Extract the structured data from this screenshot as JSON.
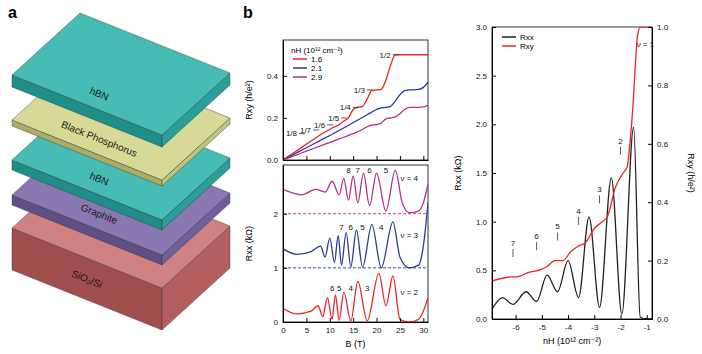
{
  "panel_a": {
    "label": "a",
    "layers": [
      "hBN",
      "Black Phosphorus",
      "hBN",
      "Graphite",
      "SiO₂/Si"
    ]
  },
  "panel_b": {
    "label": "b"
  },
  "chart_data": [
    {
      "type": "line",
      "ylabel": "Rxy (h/e²)",
      "xlim": [
        0,
        31
      ],
      "ylim": [
        0,
        0.57
      ],
      "xticks": [
        0,
        5,
        10,
        15,
        20,
        25,
        30
      ],
      "yticks": [
        {
          "value": 0,
          "label": "0.0"
        },
        {
          "value": 0.2,
          "label": "0.2"
        },
        {
          "value": 0.4,
          "label": "0.4"
        }
      ],
      "tick_labels": "y",
      "legend": "upper left",
      "legend_title": "nH (10¹² cm⁻²)",
      "series": [
        {
          "name": "1.6",
          "color": "#e8262a",
          "x": [
            0,
            2,
            4,
            6,
            8,
            10,
            11,
            12,
            13,
            14,
            15,
            16,
            17,
            18,
            19,
            20,
            21,
            22,
            23,
            24,
            25,
            26,
            28,
            30,
            31
          ],
          "values": [
            0,
            0.03,
            0.06,
            0.09,
            0.12,
            0.145,
            0.157,
            0.168,
            0.185,
            0.2,
            0.24,
            0.25,
            0.255,
            0.29,
            0.33,
            0.333,
            0.336,
            0.38,
            0.45,
            0.5,
            0.5,
            0.5,
            0.5,
            0.5,
            0.5
          ]
        },
        {
          "name": "2.1",
          "color": "#2b3a94",
          "x": [
            0,
            3,
            6,
            9,
            12,
            14,
            16,
            18,
            20,
            21,
            22,
            23,
            24,
            25,
            26,
            27,
            28,
            29,
            30,
            31
          ],
          "values": [
            0,
            0.035,
            0.07,
            0.105,
            0.14,
            0.165,
            0.19,
            0.215,
            0.24,
            0.248,
            0.25,
            0.255,
            0.28,
            0.31,
            0.33,
            0.333,
            0.333,
            0.335,
            0.345,
            0.37
          ]
        },
        {
          "name": "2.9",
          "color": "#b0308a",
          "x": [
            0,
            3,
            6,
            9,
            12,
            15,
            17,
            18,
            19,
            20,
            21,
            22,
            23,
            24,
            25,
            26,
            27,
            28,
            29,
            30,
            31
          ],
          "values": [
            0,
            0.025,
            0.05,
            0.075,
            0.1,
            0.125,
            0.145,
            0.158,
            0.166,
            0.168,
            0.175,
            0.195,
            0.2,
            0.205,
            0.22,
            0.24,
            0.25,
            0.25,
            0.25,
            0.252,
            0.26
          ]
        }
      ],
      "annotations": [
        {
          "text": "1/2",
          "x": 23,
          "y": 0.5,
          "marker": "dash"
        },
        {
          "text": "1/3",
          "x": 17.5,
          "y": 0.333,
          "marker": "dash"
        },
        {
          "text": "1/4",
          "x": 14.5,
          "y": 0.25,
          "marker": "dash"
        },
        {
          "text": "1/5",
          "x": 12,
          "y": 0.2,
          "marker": "dash"
        },
        {
          "text": "1/6",
          "x": 9,
          "y": 0.167,
          "marker": "dash"
        },
        {
          "text": "1/7",
          "x": 6,
          "y": 0.143,
          "marker": "dash"
        },
        {
          "text": "1/8",
          "x": 3,
          "y": 0.125,
          "marker": "dash"
        }
      ]
    },
    {
      "type": "line",
      "xlabel": "B (T)",
      "ylabel": "Rxx (kΩ)",
      "xlim": [
        0,
        31
      ],
      "ylim": [
        0,
        2.9
      ],
      "xticks": [
        0,
        5,
        10,
        15,
        20,
        25,
        30
      ],
      "yticks": [
        0,
        1,
        2
      ],
      "series": [
        {
          "color": "#e8262a",
          "x": [
            0,
            3,
            6,
            7.5,
            8.5,
            9.5,
            10.5,
            11.2,
            12,
            13,
            14.5,
            16,
            18,
            20.5,
            22,
            23.5,
            25,
            27,
            29,
            30,
            31
          ],
          "values": [
            0.25,
            0.15,
            0.2,
            0.3,
            0.1,
            0.45,
            0.05,
            0.5,
            0.03,
            0.55,
            0.02,
            0.75,
            0.02,
            0.9,
            0.3,
            0.85,
            0.05,
            0,
            0.05,
            0.2,
            0.45
          ]
        },
        {
          "color": "#2b3a94",
          "x": [
            0,
            3,
            6,
            8,
            9,
            10,
            11,
            11.8,
            12.5,
            13.5,
            14.5,
            15.7,
            17,
            19,
            21,
            23.5,
            25,
            27,
            29,
            30,
            31
          ],
          "values": [
            1.35,
            1.25,
            1.3,
            1.4,
            1.2,
            1.55,
            1.1,
            1.6,
            1.05,
            1.65,
            1.02,
            1.7,
            1.01,
            1.8,
            1.0,
            1.85,
            1.2,
            1.0,
            1.05,
            1.4,
            2.2
          ]
        },
        {
          "color": "#b0308a",
          "x": [
            0,
            4,
            7,
            9,
            10.5,
            12,
            13,
            14,
            15,
            16,
            17.2,
            18.5,
            20,
            22,
            24,
            25.5,
            27,
            29,
            30,
            31
          ],
          "values": [
            2.45,
            2.35,
            2.45,
            2.4,
            2.6,
            2.35,
            2.65,
            2.25,
            2.7,
            2.2,
            2.75,
            2.15,
            2.75,
            2.05,
            2.8,
            2.2,
            2.02,
            2.05,
            2.2,
            2.55
          ]
        },
        {
          "color": "#2b3a94",
          "line_style": "dashed",
          "x": [
            0,
            31
          ],
          "values": [
            1,
            1
          ]
        },
        {
          "color": "#b0308a",
          "line_style": "dashed",
          "x": [
            0,
            31
          ],
          "values": [
            2,
            2
          ]
        }
      ],
      "annotations": [
        {
          "text": "6",
          "x": 10.5,
          "y": 0.62
        },
        {
          "text": "5",
          "x": 12,
          "y": 0.62
        },
        {
          "text": "4",
          "x": 14.5,
          "y": 0.62
        },
        {
          "text": "3",
          "x": 18,
          "y": 0.62
        },
        {
          "text": "ν = 2",
          "x": 27,
          "y": 0.55
        },
        {
          "text": "7",
          "x": 12.5,
          "y": 1.75
        },
        {
          "text": "6",
          "x": 14.5,
          "y": 1.75
        },
        {
          "text": "5",
          "x": 17,
          "y": 1.75
        },
        {
          "text": "4",
          "x": 21,
          "y": 1.75
        },
        {
          "text": "ν = 3",
          "x": 27,
          "y": 1.6
        },
        {
          "text": "8",
          "x": 14,
          "y": 2.8
        },
        {
          "text": "7",
          "x": 16,
          "y": 2.8
        },
        {
          "text": "6",
          "x": 18.5,
          "y": 2.8
        },
        {
          "text": "5",
          "x": 22,
          "y": 2.8
        },
        {
          "text": "ν = 4",
          "x": 27,
          "y": 2.65
        }
      ]
    },
    {
      "type": "line",
      "xlabel": "nH (10¹² cm⁻²)",
      "ylabel": "Rxx (kΩ)",
      "y2label": "Rxy (h/e²)",
      "xlim": [
        -6.9,
        -0.8
      ],
      "ylim": [
        0,
        3
      ],
      "y2lim": [
        0,
        1
      ],
      "xticks": [
        -6,
        -5,
        -4,
        -3,
        -2,
        -1
      ],
      "yticks": [
        {
          "value": 0,
          "label": "0.0"
        },
        {
          "value": 0.5,
          "label": "0.5"
        },
        {
          "value": 1,
          "label": "1.0"
        },
        {
          "value": 1.5,
          "label": "1.5"
        },
        {
          "value": 2,
          "label": "2.0"
        },
        {
          "value": 2.5,
          "label": "2.5"
        },
        {
          "value": 3,
          "label": "3.0"
        }
      ],
      "y2ticks": [
        {
          "value": 0,
          "label": "0.0"
        },
        {
          "value": 0.2,
          "label": "0.2"
        },
        {
          "value": 0.4,
          "label": "0.4"
        },
        {
          "value": 0.6,
          "label": "0.6"
        },
        {
          "value": 0.8,
          "label": "0.8"
        },
        {
          "value": 1,
          "label": "1.0"
        }
      ],
      "legend": "upper left",
      "series": [
        {
          "name": "Rxx",
          "color": "#222222",
          "x": [
            -6.9,
            -6.5,
            -6.1,
            -5.6,
            -5.2,
            -4.8,
            -4.4,
            -4.0,
            -3.6,
            -3.2,
            -2.8,
            -2.35,
            -1.95,
            -1.5,
            -1.25,
            -1.0,
            -0.8
          ],
          "values": [
            0.1,
            0.22,
            0.15,
            0.28,
            0.18,
            0.45,
            0.28,
            0.6,
            0.22,
            1.05,
            0.12,
            1.45,
            0.05,
            1.97,
            0.02,
            0,
            0
          ]
        },
        {
          "name": "Rxy",
          "color": "#e8262a",
          "axis": "y2",
          "x": [
            -6.9,
            -6.3,
            -5.9,
            -5.5,
            -5.1,
            -4.8,
            -4.5,
            -4.2,
            -3.9,
            -3.6,
            -3.35,
            -3.0,
            -2.7,
            -2.5,
            -2.2,
            -1.9,
            -1.75,
            -1.55,
            -1.35,
            -1.25,
            -0.8
          ],
          "values": [
            0.13,
            0.143,
            0.145,
            0.16,
            0.167,
            0.18,
            0.2,
            0.2,
            0.23,
            0.25,
            0.26,
            0.31,
            0.333,
            0.35,
            0.45,
            0.5,
            0.52,
            0.7,
            0.97,
            1.0,
            1.0
          ]
        }
      ],
      "annotations": [
        {
          "text": "7",
          "x": -6.1,
          "y": 0.75,
          "marker": "tick"
        },
        {
          "text": "6",
          "x": -5.2,
          "y": 0.82,
          "marker": "tick"
        },
        {
          "text": "5",
          "x": -4.4,
          "y": 0.92,
          "marker": "tick"
        },
        {
          "text": "4",
          "x": -3.6,
          "y": 1.08,
          "marker": "tick"
        },
        {
          "text": "3",
          "x": -2.8,
          "y": 1.3,
          "marker": "tick"
        },
        {
          "text": "2",
          "x": -2.0,
          "y": 1.8,
          "marker": "tick"
        },
        {
          "text": "ν = 1",
          "x": -1.05,
          "y": 2.82
        }
      ]
    }
  ]
}
